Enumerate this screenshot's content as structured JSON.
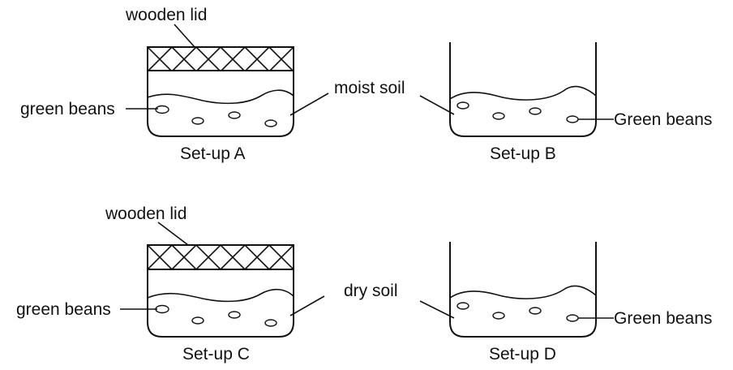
{
  "setups": [
    {
      "id": "A",
      "caption": "Set-up A",
      "lid_label": "wooden lid",
      "left_label": "green beans",
      "soil_label": "moist soil",
      "has_lid": true
    },
    {
      "id": "B",
      "caption": "Set-up B",
      "right_label": "Green beans",
      "has_lid": false
    },
    {
      "id": "C",
      "caption": "Set-up C",
      "lid_label": "wooden lid",
      "left_label": "green beans",
      "soil_label": "dry soil",
      "has_lid": true
    },
    {
      "id": "D",
      "caption": "Set-up D",
      "right_label": "Green beans",
      "has_lid": false
    }
  ]
}
